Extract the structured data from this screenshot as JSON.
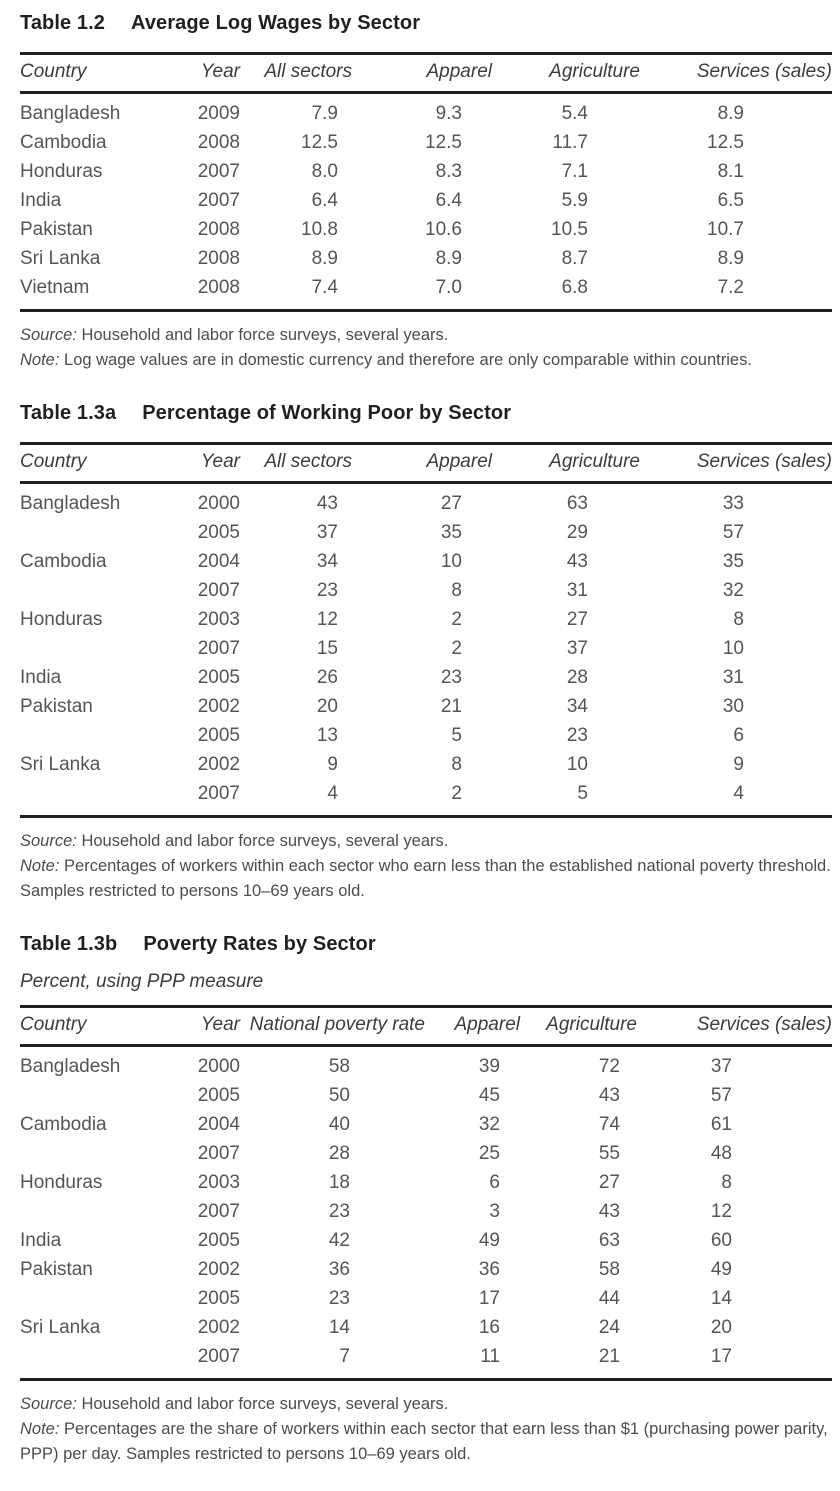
{
  "page": {
    "background": "#ffffff",
    "rule_color": "#231f20",
    "title_color": "#231f20",
    "body_text_color": "#58595b"
  },
  "tables": [
    {
      "label": "Table 1.2",
      "title": "Average Log Wages by Sector",
      "subtitle": "",
      "columns": [
        "Country",
        "Year",
        "All sectors",
        "Apparel",
        "Agriculture",
        "Services (sales)"
      ],
      "rows": [
        [
          "Bangladesh",
          "2009",
          "7.9",
          "9.3",
          "5.4",
          "8.9"
        ],
        [
          "Cambodia",
          "2008",
          "12.5",
          "12.5",
          "11.7",
          "12.5"
        ],
        [
          "Honduras",
          "2007",
          "8.0",
          "8.3",
          "7.1",
          "8.1"
        ],
        [
          "India",
          "2007",
          "6.4",
          "6.4",
          "5.9",
          "6.5"
        ],
        [
          "Pakistan",
          "2008",
          "10.8",
          "10.6",
          "10.5",
          "10.7"
        ],
        [
          "Sri Lanka",
          "2008",
          "8.9",
          "8.9",
          "8.7",
          "8.9"
        ],
        [
          "Vietnam",
          "2008",
          "7.4",
          "7.0",
          "6.8",
          "7.2"
        ]
      ],
      "source_label": "Source:",
      "source_text": "Household and labor force surveys, several years.",
      "note_label": "Note:",
      "note_text": "Log wage values are in domestic currency and therefore are only comparable within countries."
    },
    {
      "label": "Table 1.3a",
      "title": "Percentage of Working Poor by Sector",
      "subtitle": "",
      "columns": [
        "Country",
        "Year",
        "All sectors",
        "Apparel",
        "Agriculture",
        "Services (sales)"
      ],
      "rows": [
        [
          "Bangladesh",
          "2000",
          "43",
          "27",
          "63",
          "33"
        ],
        [
          "",
          "2005",
          "37",
          "35",
          "29",
          "57"
        ],
        [
          "Cambodia",
          "2004",
          "34",
          "10",
          "43",
          "35"
        ],
        [
          "",
          "2007",
          "23",
          "8",
          "31",
          "32"
        ],
        [
          "Honduras",
          "2003",
          "12",
          "2",
          "27",
          "8"
        ],
        [
          "",
          "2007",
          "15",
          "2",
          "37",
          "10"
        ],
        [
          "India",
          "2005",
          "26",
          "23",
          "28",
          "31"
        ],
        [
          "Pakistan",
          "2002",
          "20",
          "21",
          "34",
          "30"
        ],
        [
          "",
          "2005",
          "13",
          "5",
          "23",
          "6"
        ],
        [
          "Sri Lanka",
          "2002",
          "9",
          "8",
          "10",
          "9"
        ],
        [
          "",
          "2007",
          "4",
          "2",
          "5",
          "4"
        ]
      ],
      "source_label": "Source:",
      "source_text": "Household and labor force surveys, several years.",
      "note_label": "Note:",
      "note_text": "Percentages of workers within each sector who earn less than the established national poverty threshold. Samples restricted to persons 10–69 years old."
    },
    {
      "label": "Table 1.3b",
      "title": "Poverty Rates by Sector",
      "subtitle": "Percent, using PPP measure",
      "columns": [
        "Country",
        "Year",
        "National poverty rate",
        "Apparel",
        "Agriculture",
        "Services (sales)"
      ],
      "rows": [
        [
          "Bangladesh",
          "2000",
          "58",
          "39",
          "72",
          "37"
        ],
        [
          "",
          "2005",
          "50",
          "45",
          "43",
          "57"
        ],
        [
          "Cambodia",
          "2004",
          "40",
          "32",
          "74",
          "61"
        ],
        [
          "",
          "2007",
          "28",
          "25",
          "55",
          "48"
        ],
        [
          "Honduras",
          "2003",
          "18",
          "6",
          "27",
          "8"
        ],
        [
          "",
          "2007",
          "23",
          "3",
          "43",
          "12"
        ],
        [
          "India",
          "2005",
          "42",
          "49",
          "63",
          "60"
        ],
        [
          "Pakistan",
          "2002",
          "36",
          "36",
          "58",
          "49"
        ],
        [
          "",
          "2005",
          "23",
          "17",
          "44",
          "14"
        ],
        [
          "Sri Lanka",
          "2002",
          "14",
          "16",
          "24",
          "20"
        ],
        [
          "",
          "2007",
          "7",
          "11",
          "21",
          "17"
        ]
      ],
      "source_label": "Source:",
      "source_text": "Household and labor force surveys, several years.",
      "note_label": "Note:",
      "note_text": "Percentages are the share of workers within each sector that earn less than $1 (purchasing power parity, PPP) per day. Samples restricted to persons 10–69 years old."
    }
  ]
}
